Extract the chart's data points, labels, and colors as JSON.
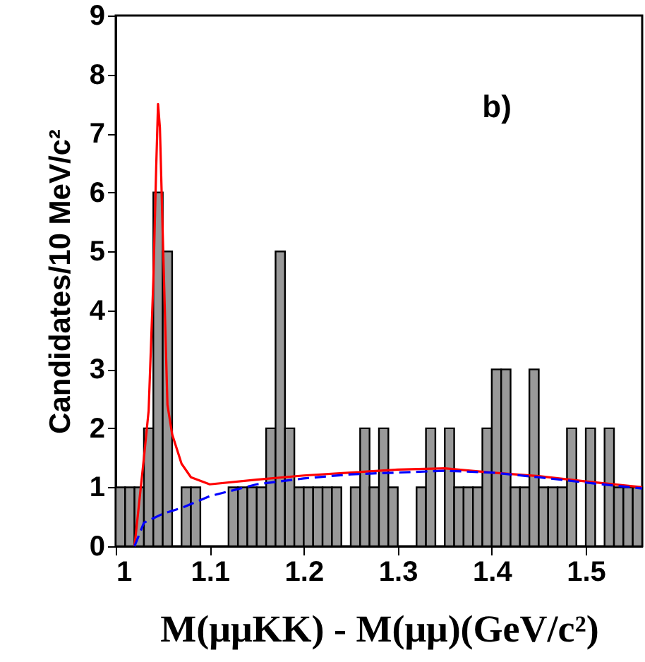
{
  "chart_data": {
    "type": "histogram",
    "xlabel": "M(μμKK) - M(μμ)(GeV/c²)",
    "ylabel": "Candidates/10 MeV/c²",
    "annotations": [
      "b)"
    ],
    "bins": [
      1.0,
      1.01,
      1.02,
      1.03,
      1.04,
      1.05,
      1.06,
      1.07,
      1.08,
      1.09,
      1.1,
      1.11,
      1.12,
      1.13,
      1.14,
      1.15,
      1.16,
      1.17,
      1.18,
      1.19,
      1.2,
      1.21,
      1.22,
      1.23,
      1.24,
      1.25,
      1.26,
      1.27,
      1.28,
      1.29,
      1.3,
      1.31,
      1.32,
      1.33,
      1.34,
      1.35,
      1.36,
      1.37,
      1.38,
      1.39,
      1.4,
      1.41,
      1.42,
      1.43,
      1.44,
      1.45,
      1.46,
      1.47,
      1.48,
      1.49,
      1.5,
      1.51,
      1.52,
      1.53,
      1.54,
      1.55,
      1.56
    ],
    "values": [
      1,
      1,
      1,
      2,
      6,
      5,
      0,
      1,
      1,
      0,
      0,
      0,
      1,
      1,
      1,
      1,
      2,
      5,
      2,
      1,
      1,
      1,
      1,
      1,
      0,
      1,
      2,
      1,
      2,
      1,
      0,
      0,
      1,
      2,
      0,
      2,
      1,
      1,
      1,
      2,
      3,
      3,
      1,
      1,
      3,
      1,
      1,
      1,
      2,
      0,
      2,
      0,
      2,
      1,
      1,
      1
    ],
    "color": "#999999",
    "series": [
      {
        "type": "line",
        "color": "#ff0000",
        "line_style": "solid",
        "x": [
          1.02,
          1.03,
          1.035,
          1.04,
          1.043,
          1.045,
          1.047,
          1.05,
          1.055,
          1.06,
          1.07,
          1.08,
          1.1,
          1.15,
          1.2,
          1.25,
          1.3,
          1.35,
          1.4,
          1.45,
          1.5,
          1.56
        ],
        "values": [
          0,
          1.5,
          2.3,
          4.5,
          6.4,
          7.5,
          7.1,
          5.3,
          2.4,
          1.9,
          1.4,
          1.17,
          1.05,
          1.13,
          1.2,
          1.25,
          1.3,
          1.32,
          1.25,
          1.19,
          1.1,
          1.0
        ]
      },
      {
        "type": "line",
        "color": "#0000ff",
        "line_style": "dashed",
        "x": [
          1.02,
          1.03,
          1.05,
          1.07,
          1.1,
          1.15,
          1.2,
          1.25,
          1.3,
          1.35,
          1.4,
          1.45,
          1.5,
          1.56
        ],
        "values": [
          0,
          0.4,
          0.55,
          0.65,
          0.85,
          1.05,
          1.15,
          1.22,
          1.25,
          1.28,
          1.25,
          1.17,
          1.08,
          0.98
        ]
      }
    ],
    "xlim": [
      1,
      1.56
    ],
    "xticks": [
      1,
      1.1,
      1.2,
      1.3,
      1.4,
      1.5
    ],
    "ylim": [
      0,
      9
    ],
    "yticks": [
      0,
      1,
      2,
      3,
      4,
      5,
      6,
      7,
      8,
      9
    ],
    "grid": false
  }
}
